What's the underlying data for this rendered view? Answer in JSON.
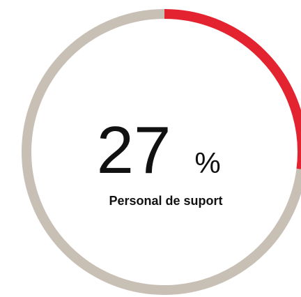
{
  "chart_data": {
    "type": "pie",
    "style": "ring",
    "categories": [
      "Personal de suport",
      null
    ],
    "values": [
      27,
      73
    ],
    "colors": [
      "#e3232f",
      "#c8bfb5"
    ],
    "unit": "%"
  }
}
